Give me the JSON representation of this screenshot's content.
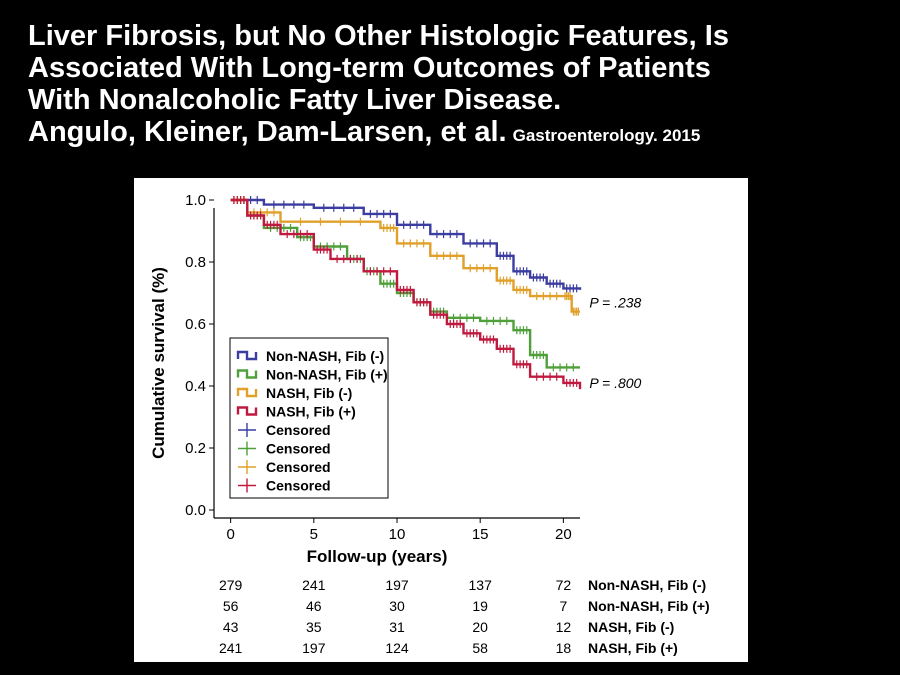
{
  "slide": {
    "title_lines": [
      "Liver Fibrosis, but No Other Histologic Features, Is",
      "Associated With Long-term Outcomes of Patients",
      "With Nonalcoholic Fatty Liver Disease."
    ],
    "authors": "Angulo, Kleiner, Dam-Larsen, et al.",
    "journal": "Gastroenterology. 2015"
  },
  "chart_data": {
    "type": "line",
    "xlabel": "Follow-up (years)",
    "ylabel": "Cumulative survival (%)",
    "xlim": [
      -1,
      21
    ],
    "ylim": [
      0,
      1.0
    ],
    "xticks": [
      "0",
      "5",
      "10",
      "15",
      "20"
    ],
    "yticks": [
      "0.0",
      "0.2",
      "0.4",
      "0.6",
      "0.8",
      "1.0"
    ],
    "grid": false,
    "legend_position": "lower-left",
    "series": [
      {
        "name": "Non-NASH, Fib (-)",
        "color": "#3b3da0",
        "points": [
          [
            0,
            1.0
          ],
          [
            2,
            0.985
          ],
          [
            5,
            0.975
          ],
          [
            8,
            0.955
          ],
          [
            10,
            0.92
          ],
          [
            12,
            0.89
          ],
          [
            14,
            0.86
          ],
          [
            16,
            0.82
          ],
          [
            17,
            0.77
          ],
          [
            18,
            0.75
          ],
          [
            19,
            0.73
          ],
          [
            20,
            0.715
          ],
          [
            21,
            0.71
          ]
        ]
      },
      {
        "name": "Non-NASH, Fib (+)",
        "color": "#4fa03a",
        "points": [
          [
            0,
            1.0
          ],
          [
            1,
            0.95
          ],
          [
            2,
            0.91
          ],
          [
            4,
            0.88
          ],
          [
            5,
            0.85
          ],
          [
            7,
            0.81
          ],
          [
            8,
            0.77
          ],
          [
            9,
            0.73
          ],
          [
            10,
            0.7
          ],
          [
            11,
            0.67
          ],
          [
            12,
            0.64
          ],
          [
            13,
            0.62
          ],
          [
            15,
            0.61
          ],
          [
            17,
            0.58
          ],
          [
            18,
            0.5
          ],
          [
            19,
            0.46
          ],
          [
            21,
            0.46
          ]
        ]
      },
      {
        "name": "NASH, Fib (-)",
        "color": "#e0a02a",
        "points": [
          [
            0,
            1.0
          ],
          [
            1,
            0.96
          ],
          [
            3,
            0.93
          ],
          [
            9,
            0.91
          ],
          [
            10,
            0.86
          ],
          [
            12,
            0.82
          ],
          [
            14,
            0.78
          ],
          [
            16,
            0.74
          ],
          [
            17,
            0.71
          ],
          [
            18,
            0.69
          ],
          [
            20,
            0.69
          ],
          [
            20.5,
            0.64
          ],
          [
            21,
            0.64
          ]
        ]
      },
      {
        "name": "NASH, Fib (+)",
        "color": "#c0193f",
        "points": [
          [
            0,
            1.0
          ],
          [
            1,
            0.95
          ],
          [
            2,
            0.92
          ],
          [
            3,
            0.89
          ],
          [
            5,
            0.84
          ],
          [
            6,
            0.81
          ],
          [
            8,
            0.77
          ],
          [
            10,
            0.71
          ],
          [
            11,
            0.67
          ],
          [
            12,
            0.63
          ],
          [
            13,
            0.6
          ],
          [
            14,
            0.57
          ],
          [
            15,
            0.55
          ],
          [
            16,
            0.52
          ],
          [
            17,
            0.47
          ],
          [
            18,
            0.43
          ],
          [
            20,
            0.41
          ],
          [
            21,
            0.39
          ]
        ]
      }
    ],
    "censored_legend": [
      {
        "name": "Censored",
        "color": "#3b3da0"
      },
      {
        "name": "Censored",
        "color": "#4fa03a"
      },
      {
        "name": "Censored",
        "color": "#e0a02a"
      },
      {
        "name": "Censored",
        "color": "#c0193f"
      }
    ],
    "annotations": [
      {
        "text": "P = .238",
        "x": 21.2,
        "y": 0.67
      },
      {
        "text": "P = .800",
        "x": 21.2,
        "y": 0.41
      }
    ],
    "risk_table": {
      "times": [
        0,
        5,
        10,
        15,
        20
      ],
      "rows": [
        {
          "label": "Non-NASH, Fib (-)",
          "values": [
            "279",
            "241",
            "197",
            "137",
            "72"
          ]
        },
        {
          "label": "Non-NASH, Fib (+)",
          "values": [
            "56",
            "46",
            "30",
            "19",
            "7"
          ]
        },
        {
          "label": "NASH, Fib (-)",
          "values": [
            "43",
            "35",
            "31",
            "20",
            "12"
          ]
        },
        {
          "label": "NASH, Fib (+)",
          "values": [
            "241",
            "197",
            "124",
            "58",
            "18"
          ]
        }
      ]
    }
  }
}
